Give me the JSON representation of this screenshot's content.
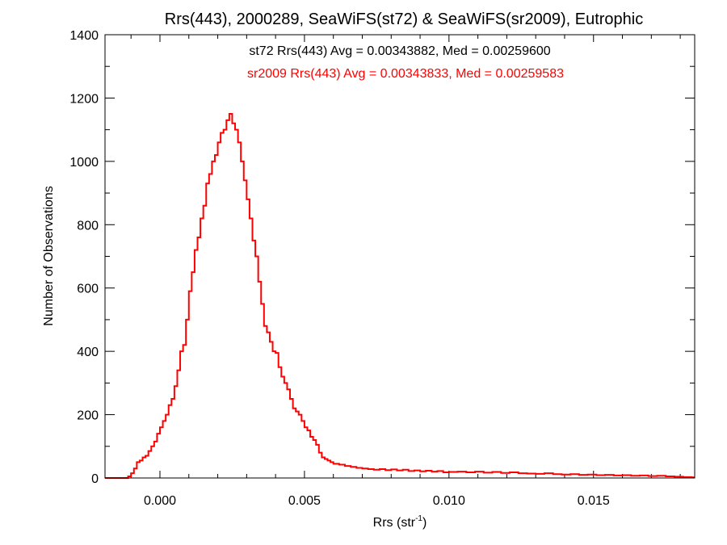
{
  "chart_data": {
    "type": "line",
    "title": "Rrs(443), 2000289, SeaWiFS(st72) & SeaWiFS(sr2009), Eutrophic",
    "xlabel": "Rrs (str",
    "xlabel_sup": "-1",
    "xlabel_suffix": ")",
    "ylabel": "Number of Observations",
    "xlim": [
      -0.0019,
      0.0185
    ],
    "ylim": [
      0,
      1400
    ],
    "x_ticks": [
      {
        "value": 0.0,
        "label": "0.000"
      },
      {
        "value": 0.005,
        "label": "0.005"
      },
      {
        "value": 0.01,
        "label": "0.010"
      },
      {
        "value": 0.015,
        "label": "0.015"
      }
    ],
    "y_ticks": [
      {
        "value": 0,
        "label": "0"
      },
      {
        "value": 200,
        "label": "200"
      },
      {
        "value": 400,
        "label": "400"
      },
      {
        "value": 600,
        "label": "600"
      },
      {
        "value": 800,
        "label": "800"
      },
      {
        "value": 1000,
        "label": "1000"
      },
      {
        "value": 1200,
        "label": "1200"
      },
      {
        "value": 1400,
        "label": "1400"
      }
    ],
    "x_minor_step": 0.001,
    "y_minor_step": 100,
    "annotations": [
      {
        "text": "st72 Rrs(443) Avg = 0.00343882, Med = 0.00259600",
        "color": "#000000"
      },
      {
        "text": "sr2009 Rrs(443) Avg = 0.00343833, Med = 0.00259583",
        "color": "#ff0000"
      }
    ],
    "series": [
      {
        "color": "#ff0000",
        "step": true,
        "x": [
          -0.0019,
          -0.0011,
          -0.001,
          -0.0009,
          -0.0008,
          -0.0007,
          -0.0006,
          -0.0005,
          -0.0004,
          -0.0003,
          -0.0002,
          -0.0001,
          0.0,
          0.0001,
          0.0002,
          0.0003,
          0.0004,
          0.0005,
          0.0006,
          0.0007,
          0.0008,
          0.0009,
          0.001,
          0.0011,
          0.0012,
          0.0013,
          0.0014,
          0.0015,
          0.0016,
          0.0017,
          0.0018,
          0.0019,
          0.002,
          0.0021,
          0.0022,
          0.0023,
          0.0024,
          0.0025,
          0.0026,
          0.0027,
          0.0028,
          0.0029,
          0.003,
          0.0031,
          0.0032,
          0.0033,
          0.0034,
          0.0035,
          0.0036,
          0.0037,
          0.0038,
          0.0039,
          0.004,
          0.0041,
          0.0042,
          0.0043,
          0.0044,
          0.0045,
          0.0046,
          0.0047,
          0.0048,
          0.0049,
          0.005,
          0.0051,
          0.0052,
          0.0053,
          0.0054,
          0.0055,
          0.0056,
          0.0057,
          0.0058,
          0.0059,
          0.006,
          0.0062,
          0.0064,
          0.0066,
          0.0068,
          0.007,
          0.0072,
          0.0074,
          0.0076,
          0.0078,
          0.008,
          0.0082,
          0.0084,
          0.0086,
          0.0088,
          0.009,
          0.0092,
          0.0094,
          0.0096,
          0.0098,
          0.01,
          0.0103,
          0.0106,
          0.0109,
          0.0112,
          0.0115,
          0.0118,
          0.0121,
          0.0124,
          0.0127,
          0.013,
          0.0133,
          0.0136,
          0.0139,
          0.0142,
          0.0145,
          0.0148,
          0.0151,
          0.0154,
          0.0157,
          0.016,
          0.0163,
          0.0166,
          0.0169,
          0.0172,
          0.0175,
          0.0178,
          0.0181,
          0.0184
        ],
        "y": [
          0,
          5,
          15,
          30,
          50,
          55,
          65,
          70,
          85,
          100,
          115,
          140,
          160,
          180,
          200,
          230,
          250,
          290,
          340,
          400,
          420,
          500,
          590,
          650,
          720,
          760,
          820,
          860,
          930,
          960,
          1000,
          1020,
          1060,
          1090,
          1100,
          1130,
          1150,
          1120,
          1100,
          1060,
          1000,
          940,
          880,
          820,
          750,
          700,
          620,
          550,
          480,
          460,
          430,
          400,
          395,
          350,
          320,
          300,
          280,
          250,
          220,
          210,
          200,
          180,
          160,
          150,
          130,
          120,
          105,
          80,
          65,
          60,
          55,
          50,
          45,
          42,
          38,
          35,
          32,
          30,
          28,
          26,
          28,
          25,
          27,
          24,
          26,
          22,
          24,
          21,
          23,
          20,
          22,
          18,
          19,
          20,
          18,
          20,
          17,
          19,
          16,
          18,
          15,
          14,
          13,
          15,
          12,
          11,
          12,
          10,
          11,
          9,
          10,
          8,
          9,
          7,
          8,
          6,
          7,
          5,
          4,
          3,
          2
        ]
      }
    ]
  }
}
